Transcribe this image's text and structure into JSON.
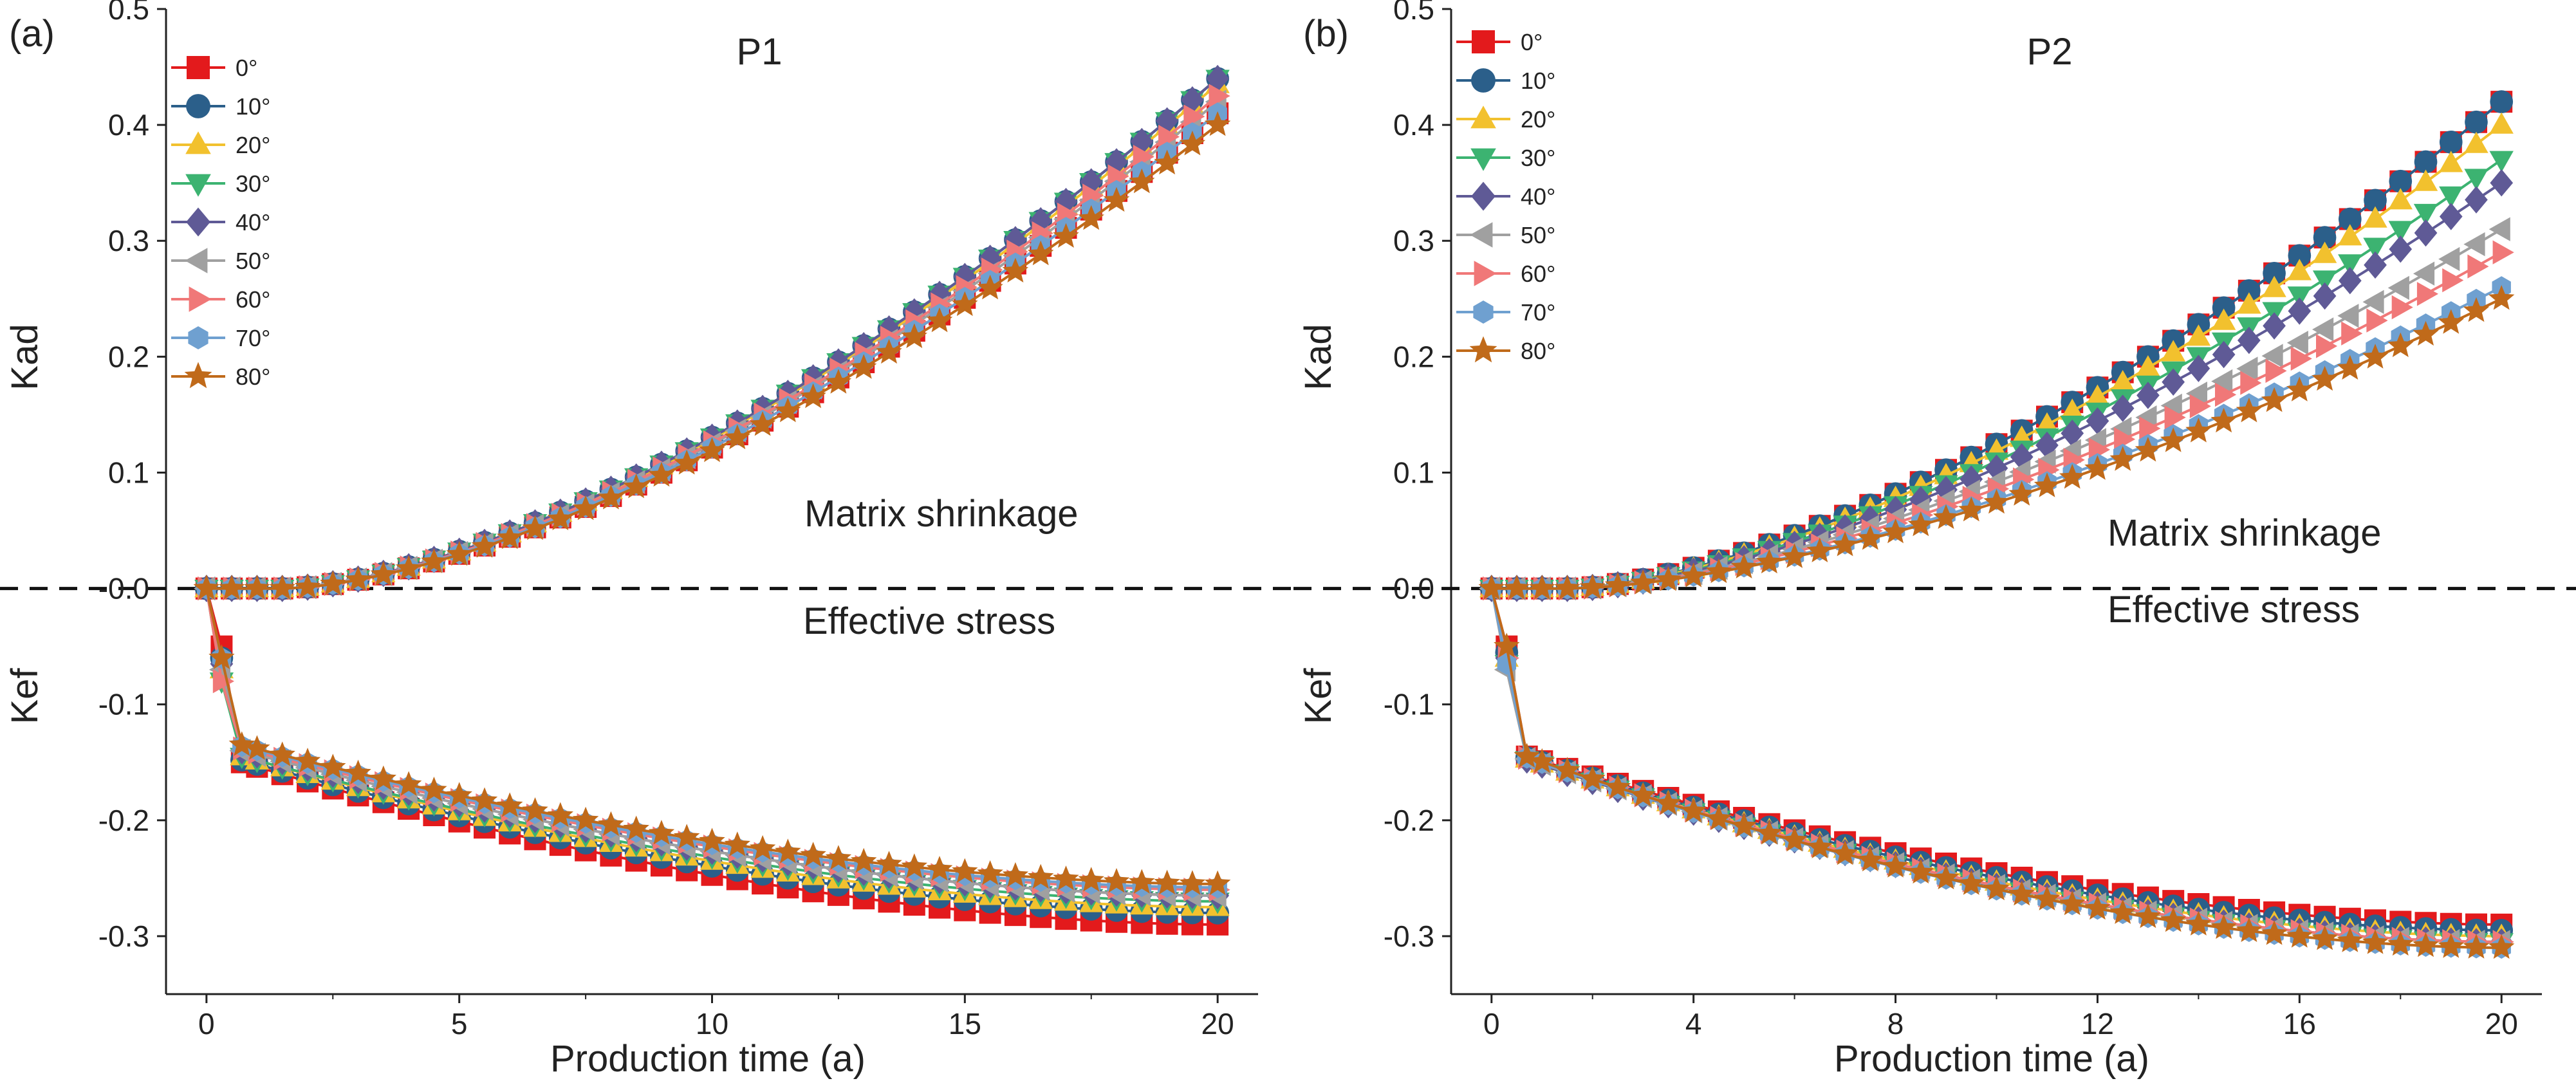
{
  "figure": {
    "panels": [
      {
        "label": "(a)",
        "title": "P1",
        "xlabel": "Production time (a)",
        "ylabel_top": "Kad",
        "ylabel_bottom": "Kef",
        "annotation_top": "Matrix shrinkage",
        "annotation_bottom": "Effective stress"
      },
      {
        "label": "(b)",
        "title": "P2",
        "xlabel": "Production time (a)",
        "ylabel_top": "Kad",
        "ylabel_bottom": "Kef",
        "annotation_top": "Matrix shrinkage",
        "annotation_bottom": "Effective stress"
      }
    ]
  },
  "chart_data": [
    {
      "type": "line",
      "panel_label": "(a)",
      "title": "P1",
      "xlabel": "Production time (a)",
      "ylabel": "Kad / Kef",
      "xlim": [
        -0.8,
        20.8
      ],
      "ylim": [
        -0.35,
        0.5
      ],
      "xticks": [
        0,
        5,
        10,
        15,
        20
      ],
      "yticks": [
        -0.3,
        -0.2,
        -0.1,
        0.0,
        0.1,
        0.2,
        0.3,
        0.4,
        0.5
      ],
      "ytick_labels": [
        "-0.3",
        "-0.2",
        "-0.1",
        "-0.0",
        "0.1",
        "0.2",
        "0.3",
        "0.4",
        "0.5"
      ],
      "reference_line": {
        "y": 0,
        "style": "dashed"
      },
      "legend_position": "top-left",
      "kad_model": {
        "onset_time": 1.6,
        "end_values_at_20": [
          0.41,
          0.44,
          0.435,
          0.44,
          0.44,
          0.42,
          0.425,
          0.41,
          0.4
        ]
      },
      "kef_model": {
        "initial_drop_at_0.3": [
          -0.05,
          -0.06,
          -0.07,
          -0.08,
          -0.065,
          -0.07,
          -0.08,
          -0.06,
          -0.06
        ],
        "values_at_0.7": [
          -0.15,
          -0.148,
          -0.145,
          -0.145,
          -0.14,
          -0.14,
          -0.138,
          -0.136,
          -0.135
        ],
        "end_values_at_20": [
          -0.29,
          -0.28,
          -0.275,
          -0.27,
          -0.265,
          -0.265,
          -0.26,
          -0.258,
          -0.255
        ]
      },
      "series": [
        {
          "name": "0°",
          "color": "#e31a1c",
          "marker": "square"
        },
        {
          "name": "10°",
          "color": "#2b5f8a",
          "marker": "circle"
        },
        {
          "name": "20°",
          "color": "#f2c12e",
          "marker": "triangle-up"
        },
        {
          "name": "30°",
          "color": "#3cb371",
          "marker": "triangle-down"
        },
        {
          "name": "40°",
          "color": "#5f5a96",
          "marker": "diamond"
        },
        {
          "name": "50°",
          "color": "#a0a0a0",
          "marker": "triangle-left"
        },
        {
          "name": "60°",
          "color": "#f07878",
          "marker": "triangle-right"
        },
        {
          "name": "70°",
          "color": "#6fa0d0",
          "marker": "hexagon"
        },
        {
          "name": "80°",
          "color": "#c06a1a",
          "marker": "star"
        }
      ]
    },
    {
      "type": "line",
      "panel_label": "(b)",
      "title": "P2",
      "xlabel": "Production time (a)",
      "ylabel": "Kad / Kef",
      "xlim": [
        -0.8,
        20.8
      ],
      "ylim": [
        -0.35,
        0.5
      ],
      "xticks": [
        0,
        4,
        8,
        12,
        16,
        20
      ],
      "yticks": [
        -0.3,
        -0.2,
        -0.1,
        0.0,
        0.1,
        0.2,
        0.3,
        0.4,
        0.5
      ],
      "ytick_labels": [
        "-0.3",
        "-0.2",
        "-0.1",
        "0.0",
        "0.1",
        "0.2",
        "0.3",
        "0.4",
        "0.5"
      ],
      "reference_line": {
        "y": 0,
        "style": "dashed"
      },
      "legend_position": "top-left",
      "kad_model": {
        "onset_time": 1.6,
        "end_values_at_20": [
          0.42,
          0.42,
          0.4,
          0.37,
          0.35,
          0.31,
          0.29,
          0.26,
          0.25
        ]
      },
      "kef_model": {
        "initial_drop_at_0.3": [
          -0.05,
          -0.055,
          -0.06,
          -0.065,
          -0.06,
          -0.07,
          -0.06,
          -0.065,
          -0.05
        ],
        "values_at_0.7": [
          -0.145,
          -0.146,
          -0.147,
          -0.148,
          -0.148,
          -0.147,
          -0.146,
          -0.146,
          -0.145
        ],
        "end_values_at_20": [
          -0.29,
          -0.295,
          -0.3,
          -0.305,
          -0.305,
          -0.305,
          -0.305,
          -0.31,
          -0.31
        ]
      },
      "series": [
        {
          "name": "0°",
          "color": "#e31a1c",
          "marker": "square"
        },
        {
          "name": "10°",
          "color": "#2b5f8a",
          "marker": "circle"
        },
        {
          "name": "20°",
          "color": "#f2c12e",
          "marker": "triangle-up"
        },
        {
          "name": "30°",
          "color": "#3cb371",
          "marker": "triangle-down"
        },
        {
          "name": "40°",
          "color": "#5f5a96",
          "marker": "diamond"
        },
        {
          "name": "50°",
          "color": "#a0a0a0",
          "marker": "triangle-left"
        },
        {
          "name": "60°",
          "color": "#f07878",
          "marker": "triangle-right"
        },
        {
          "name": "70°",
          "color": "#6fa0d0",
          "marker": "hexagon"
        },
        {
          "name": "80°",
          "color": "#c06a1a",
          "marker": "star"
        }
      ]
    }
  ]
}
